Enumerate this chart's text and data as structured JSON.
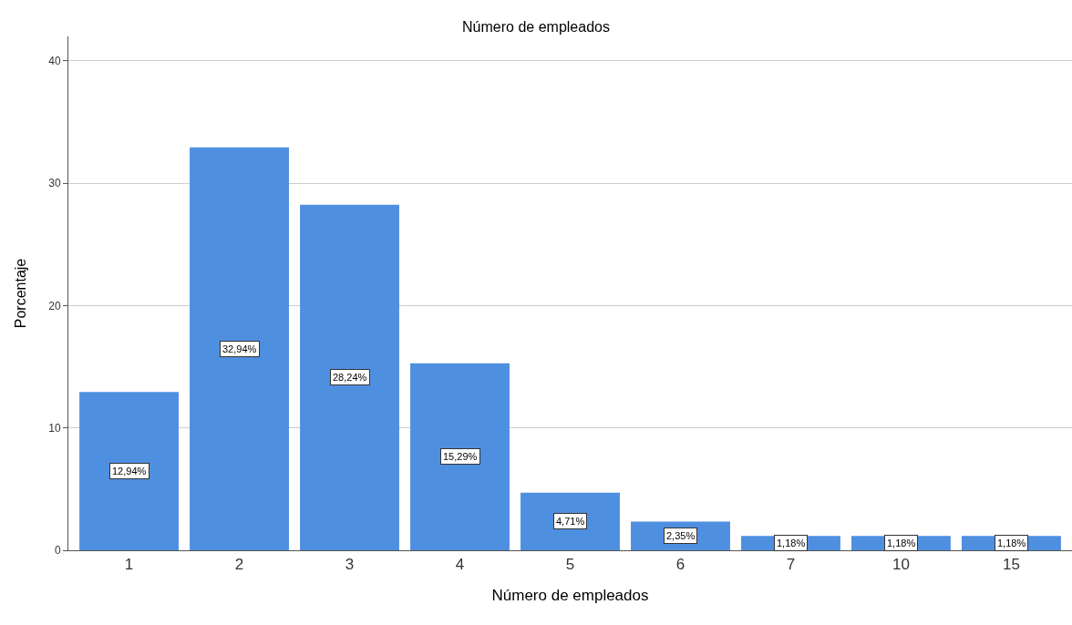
{
  "chart_data": {
    "type": "bar",
    "title": "Número de empleados",
    "xlabel": "Número de empleados",
    "ylabel": "Porcentaje",
    "categories": [
      "1",
      "2",
      "3",
      "4",
      "5",
      "6",
      "7",
      "10",
      "15"
    ],
    "values": [
      12.94,
      32.94,
      28.24,
      15.29,
      4.71,
      2.35,
      1.18,
      1.18,
      1.18
    ],
    "value_labels": [
      "12,94%",
      "32,94%",
      "28,24%",
      "15,29%",
      "4,71%",
      "2,35%",
      "1,18%",
      "1,18%",
      "1,18%"
    ],
    "color": "#4f8fe0",
    "ylim": [
      0,
      42
    ],
    "yticks": [
      0,
      10,
      20,
      30,
      40
    ],
    "grid": "y",
    "legend": false
  }
}
